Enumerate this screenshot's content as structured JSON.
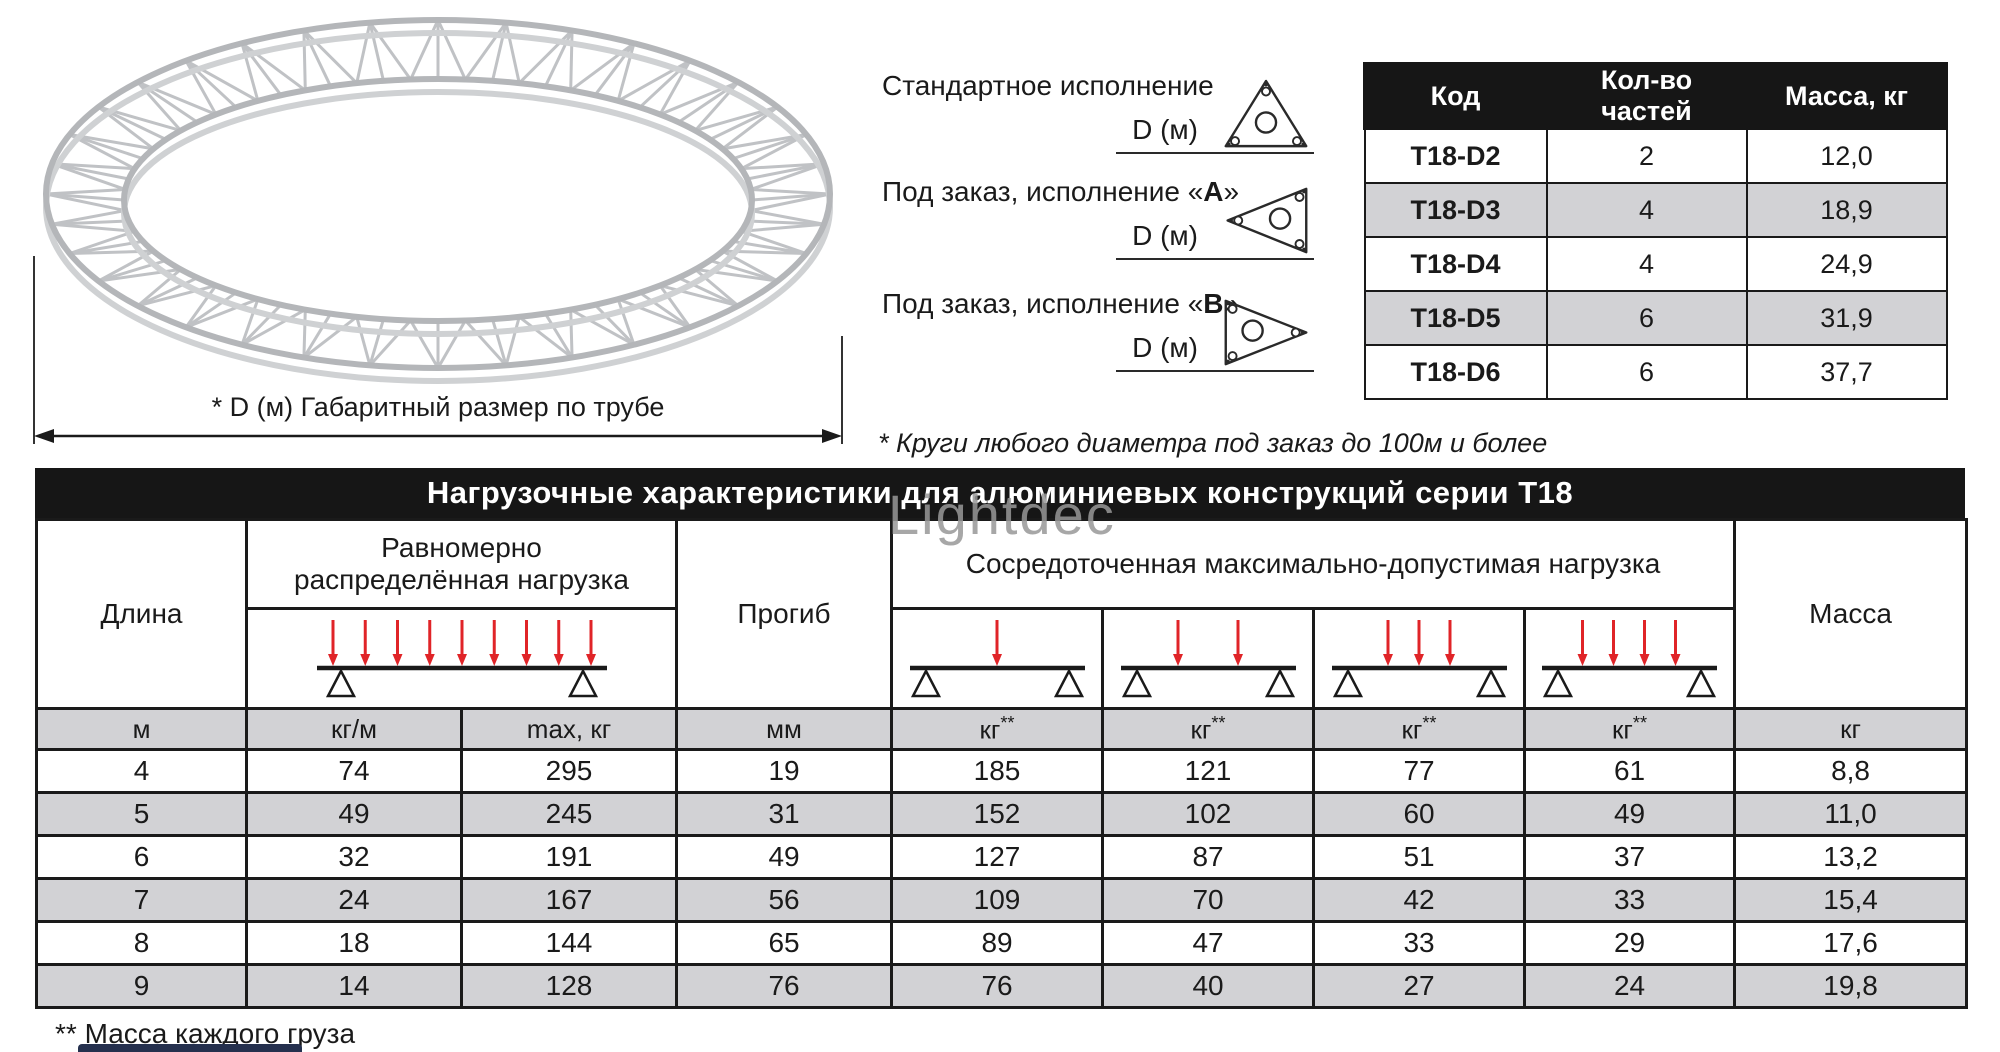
{
  "watermark": "Lightdec",
  "drawing": {
    "dimension_label": "* D (м)  Габаритный размер по трубе"
  },
  "variants": {
    "items": [
      {
        "pre": "Стандартное исполнение",
        "bold": "",
        "post": "",
        "dim": "D (м)",
        "shape": "up"
      },
      {
        "pre": "Под заказ, исполнение «",
        "bold": "А",
        "post": "»",
        "dim": "D (м)",
        "shape": "left"
      },
      {
        "pre": "Под заказ, исполнение «",
        "bold": "В",
        "post": "»",
        "dim": "D (м)",
        "shape": "right"
      }
    ]
  },
  "notes": {
    "circle_note": "* Круги любого диаметра под заказ до 100м и более",
    "mass_note": "** Масса каждого груза"
  },
  "parts_table": {
    "headers": [
      "Код",
      "Кол-во частей",
      "Масса, кг"
    ],
    "rows": [
      [
        "T18-D2",
        "2",
        "12,0"
      ],
      [
        "T18-D3",
        "4",
        "18,9"
      ],
      [
        "T18-D4",
        "4",
        "24,9"
      ],
      [
        "T18-D5",
        "6",
        "31,9"
      ],
      [
        "T18-D6",
        "6",
        "37,7"
      ]
    ]
  },
  "load_table": {
    "title": "Нагрузочные характеристики для алюминиевых конструкций серии Т18",
    "col_length": "Длина",
    "col_uniform_1": "Равномерно",
    "col_uniform_2": "распределённая нагрузка",
    "col_deflection": "Прогиб",
    "col_concentrated": "Сосредоточенная максимально-допустимая нагрузка",
    "col_mass": "Масса",
    "units": [
      "м",
      "кг/м",
      "max, кг",
      "мм",
      "кг**",
      "кг**",
      "кг**",
      "кг**",
      "кг"
    ],
    "diagram_arrow_counts": [
      9,
      1,
      2,
      3,
      4
    ],
    "rows": [
      [
        "4",
        "74",
        "295",
        "19",
        "185",
        "121",
        "77",
        "61",
        "8,8"
      ],
      [
        "5",
        "49",
        "245",
        "31",
        "152",
        "102",
        "60",
        "49",
        "11,0"
      ],
      [
        "6",
        "32",
        "191",
        "49",
        "127",
        "87",
        "51",
        "37",
        "13,2"
      ],
      [
        "7",
        "24",
        "167",
        "56",
        "109",
        "70",
        "42",
        "33",
        "15,4"
      ],
      [
        "8",
        "18",
        "144",
        "65",
        "89",
        "47",
        "33",
        "29",
        "17,6"
      ],
      [
        "9",
        "14",
        "128",
        "76",
        "76",
        "40",
        "27",
        "24",
        "19,8"
      ]
    ]
  },
  "colors": {
    "accent_red": "#e02428",
    "bar_black": "#161616",
    "row_alt": "#d2d2d5",
    "border": "#1a1a1a",
    "truss_gray": "#b4b6b9",
    "partial_bar_navy": "#25304e"
  }
}
